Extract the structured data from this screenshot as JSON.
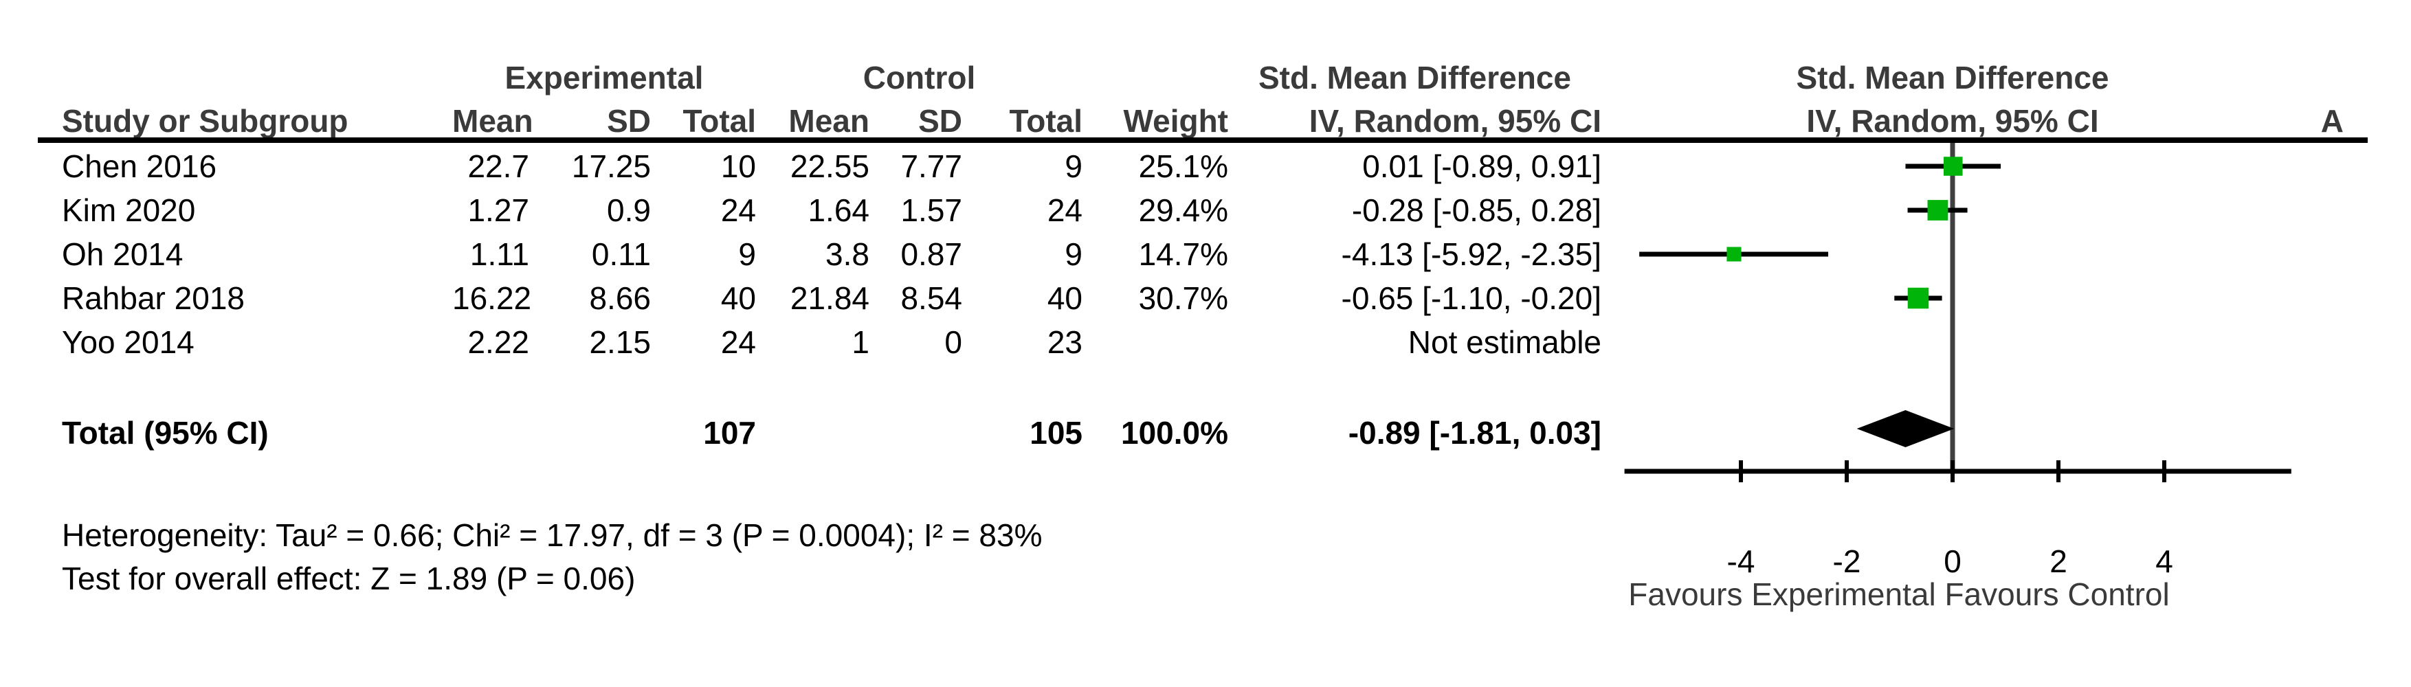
{
  "panel_label": "A",
  "colors": {
    "marker_green": "#00b40a",
    "zero_line": "#404040",
    "axis_black": "#000000",
    "header_gray": "#3a3a3a"
  },
  "table": {
    "group_headers": {
      "experimental": "Experimental",
      "control": "Control",
      "smd_text": "Std. Mean Difference",
      "smd_plot": "Std. Mean Difference"
    },
    "col_headers": {
      "study": "Study or Subgroup",
      "mean": "Mean",
      "sd": "SD",
      "total": "Total",
      "weight": "Weight",
      "ci": "IV, Random, 95% CI",
      "ci_plot": "IV, Random, 95% CI"
    },
    "rows": [
      {
        "study": "Chen 2016",
        "exp_mean": "22.7",
        "exp_sd": "17.25",
        "exp_total": "10",
        "ctrl_mean": "22.55",
        "ctrl_sd": "7.77",
        "ctrl_total": "9",
        "weight": "25.1%",
        "ci_text": "0.01 [-0.89, 0.91]"
      },
      {
        "study": "Kim 2020",
        "exp_mean": "1.27",
        "exp_sd": "0.9",
        "exp_total": "24",
        "ctrl_mean": "1.64",
        "ctrl_sd": "1.57",
        "ctrl_total": "24",
        "weight": "29.4%",
        "ci_text": "-0.28 [-0.85, 0.28]"
      },
      {
        "study": "Oh 2014",
        "exp_mean": "1.11",
        "exp_sd": "0.11",
        "exp_total": "9",
        "ctrl_mean": "3.8",
        "ctrl_sd": "0.87",
        "ctrl_total": "9",
        "weight": "14.7%",
        "ci_text": "-4.13 [-5.92, -2.35]"
      },
      {
        "study": "Rahbar 2018",
        "exp_mean": "16.22",
        "exp_sd": "8.66",
        "exp_total": "40",
        "ctrl_mean": "21.84",
        "ctrl_sd": "8.54",
        "ctrl_total": "40",
        "weight": "30.7%",
        "ci_text": "-0.65 [-1.10, -0.20]"
      },
      {
        "study": "Yoo 2014",
        "exp_mean": "2.22",
        "exp_sd": "2.15",
        "exp_total": "24",
        "ctrl_mean": "1",
        "ctrl_sd": "0",
        "ctrl_total": "23",
        "weight": "",
        "ci_text": "Not estimable"
      }
    ],
    "total_row": {
      "label": "Total (95% CI)",
      "exp_total": "107",
      "ctrl_total": "105",
      "weight": "100.0%",
      "ci_text": "-0.89 [-1.81, 0.03]"
    }
  },
  "footnotes": {
    "heterogeneity": "Heterogeneity: Tau² = 0.66; Chi² = 17.97, df = 3 (P = 0.0004); I² = 83%",
    "overall_effect": "Test for overall effect: Z = 1.89 (P = 0.06)"
  },
  "chart_data": {
    "type": "forest",
    "effect_measure": "Std. Mean Difference",
    "method": "IV, Random, 95% CI",
    "x_axis": {
      "ticks": [
        -4,
        -2,
        0,
        2,
        4
      ],
      "min": -6.2,
      "max": 6.4,
      "favours_label": "Favours Experimental Favours Control"
    },
    "studies": [
      {
        "name": "Chen 2016",
        "estimate": 0.01,
        "ci_low": -0.89,
        "ci_high": 0.91,
        "weight_pct": 25.1
      },
      {
        "name": "Kim 2020",
        "estimate": -0.28,
        "ci_low": -0.85,
        "ci_high": 0.28,
        "weight_pct": 29.4
      },
      {
        "name": "Oh 2014",
        "estimate": -4.13,
        "ci_low": -5.92,
        "ci_high": -2.35,
        "weight_pct": 14.7
      },
      {
        "name": "Rahbar 2018",
        "estimate": -0.65,
        "ci_low": -1.1,
        "ci_high": -0.2,
        "weight_pct": 30.7
      },
      {
        "name": "Yoo 2014",
        "estimate": null,
        "ci_low": null,
        "ci_high": null,
        "weight_pct": null,
        "note": "Not estimable"
      }
    ],
    "overall": {
      "label": "Total (95% CI)",
      "estimate": -0.89,
      "ci_low": -1.81,
      "ci_high": 0.03
    }
  }
}
